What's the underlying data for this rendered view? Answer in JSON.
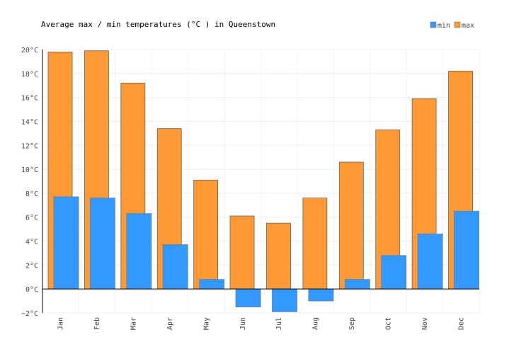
{
  "chart_data": {
    "type": "bar",
    "title": "Average max / min temperatures (°C ) in Queenstown",
    "categories": [
      "Jan",
      "Feb",
      "Mar",
      "Apr",
      "May",
      "Jun",
      "Jul",
      "Aug",
      "Sep",
      "Oct",
      "Nov",
      "Dec"
    ],
    "series": [
      {
        "name": "max",
        "color": "#ff9933",
        "values": [
          19.8,
          19.9,
          17.2,
          13.4,
          9.1,
          6.1,
          5.5,
          7.6,
          10.6,
          13.3,
          15.9,
          18.2
        ]
      },
      {
        "name": "min",
        "color": "#3399ff",
        "values": [
          7.7,
          7.6,
          6.3,
          3.7,
          0.8,
          -1.5,
          -1.9,
          -1.0,
          0.8,
          2.8,
          4.6,
          6.5
        ]
      }
    ],
    "legend": [
      "min",
      "max"
    ],
    "legend_placement": "top-right",
    "ylim": [
      -2,
      20
    ],
    "yticks": [
      -2,
      0,
      2,
      4,
      6,
      8,
      10,
      12,
      14,
      16,
      18,
      20
    ],
    "ytick_labels": [
      "−2°C",
      "0°C",
      "2°C",
      "4°C",
      "6°C",
      "8°C",
      "10°C",
      "12°C",
      "14°C",
      "16°C",
      "18°C",
      "20°C"
    ],
    "grid": true,
    "xlabel": "",
    "ylabel": ""
  }
}
